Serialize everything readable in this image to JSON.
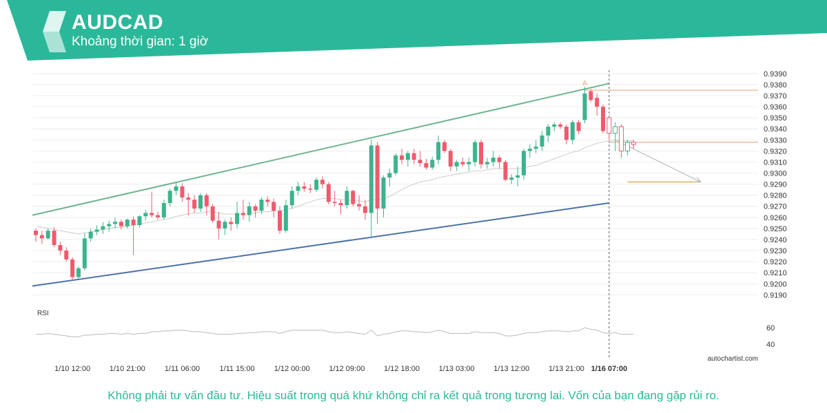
{
  "header": {
    "symbol": "AUDCAD",
    "timeframe": "Khoảng thời gian: 1 giờ"
  },
  "brand_color": "#2bb89a",
  "watermark": "autochartist.com",
  "disclaimer": "Không phải tư vấn đầu tư. Hiệu suất trong quá khứ không chỉ ra kết quả trong tương lai. Vốn của bạn đang gặp rủi ro.",
  "chart_data": {
    "type": "candlestick",
    "symbol": "AUDCAD",
    "interval": "1 giờ",
    "y_ticks": [
      "0.9190",
      "0.9200",
      "0.9210",
      "0.9220",
      "0.9230",
      "0.9240",
      "0.9250",
      "0.9260",
      "0.9270",
      "0.9280",
      "0.9290",
      "0.9300",
      "0.9310",
      "0.9320",
      "0.9330",
      "0.9340",
      "0.9350",
      "0.9360",
      "0.9370",
      "0.9380",
      "0.9390"
    ],
    "ylim": [
      0.9184,
      0.9393
    ],
    "x_ticks": [
      {
        "label": "1/10 12:00",
        "index": 6
      },
      {
        "label": "1/10 21:00",
        "index": 15
      },
      {
        "label": "1/11 06:00",
        "index": 24
      },
      {
        "label": "1/11 15:00",
        "index": 33
      },
      {
        "label": "1/12 00:00",
        "index": 42
      },
      {
        "label": "1/12 09:00",
        "index": 51
      },
      {
        "label": "1/12 18:00",
        "index": 60
      },
      {
        "label": "1/13 03:00",
        "index": 69
      },
      {
        "label": "1/13 12:00",
        "index": 78
      },
      {
        "label": "1/13 21:00",
        "index": 87
      },
      {
        "label": "1/16 07:00",
        "index": 94,
        "bold": true
      }
    ],
    "candles": [
      [
        0.9248,
        0.925,
        0.9238,
        0.9244
      ],
      [
        0.9244,
        0.9248,
        0.9236,
        0.9241
      ],
      [
        0.9241,
        0.925,
        0.924,
        0.9248
      ],
      [
        0.9248,
        0.9251,
        0.9233,
        0.9235
      ],
      [
        0.9235,
        0.9238,
        0.9226,
        0.923
      ],
      [
        0.923,
        0.9233,
        0.922,
        0.9222
      ],
      [
        0.9222,
        0.9224,
        0.9203,
        0.9206
      ],
      [
        0.9206,
        0.9216,
        0.9204,
        0.9214
      ],
      [
        0.9214,
        0.9246,
        0.9212,
        0.9241
      ],
      [
        0.9241,
        0.925,
        0.9238,
        0.9247
      ],
      [
        0.9247,
        0.9253,
        0.9244,
        0.9249
      ],
      [
        0.9249,
        0.9256,
        0.9245,
        0.9252
      ],
      [
        0.9252,
        0.9257,
        0.9247,
        0.9254
      ],
      [
        0.9254,
        0.926,
        0.925,
        0.9256
      ],
      [
        0.9256,
        0.9258,
        0.9249,
        0.9252
      ],
      [
        0.9252,
        0.9259,
        0.925,
        0.9258
      ],
      [
        0.9258,
        0.9261,
        0.9226,
        0.9253
      ],
      [
        0.9253,
        0.9262,
        0.9251,
        0.9261
      ],
      [
        0.9261,
        0.9267,
        0.9257,
        0.9264
      ],
      [
        0.9264,
        0.9283,
        0.926,
        0.9262
      ],
      [
        0.9262,
        0.9265,
        0.9258,
        0.926
      ],
      [
        0.926,
        0.9276,
        0.9258,
        0.9273
      ],
      [
        0.9273,
        0.9286,
        0.927,
        0.9284
      ],
      [
        0.9284,
        0.9292,
        0.928,
        0.9288
      ],
      [
        0.9288,
        0.9291,
        0.9274,
        0.9278
      ],
      [
        0.9278,
        0.9282,
        0.9262,
        0.9276
      ],
      [
        0.9276,
        0.928,
        0.9264,
        0.9268
      ],
      [
        0.9268,
        0.9282,
        0.9265,
        0.928
      ],
      [
        0.928,
        0.9282,
        0.9262,
        0.927
      ],
      [
        0.927,
        0.9272,
        0.9255,
        0.9257
      ],
      [
        0.9257,
        0.9265,
        0.924,
        0.925
      ],
      [
        0.925,
        0.9258,
        0.9244,
        0.9256
      ],
      [
        0.9256,
        0.926,
        0.9248,
        0.9254
      ],
      [
        0.9254,
        0.9274,
        0.925,
        0.9264
      ],
      [
        0.9264,
        0.9276,
        0.9258,
        0.9262
      ],
      [
        0.9262,
        0.9274,
        0.9256,
        0.927
      ],
      [
        0.927,
        0.9272,
        0.926,
        0.9266
      ],
      [
        0.9266,
        0.9278,
        0.9263,
        0.9276
      ],
      [
        0.9276,
        0.9279,
        0.927,
        0.9274
      ],
      [
        0.9274,
        0.9277,
        0.926,
        0.9266
      ],
      [
        0.9266,
        0.927,
        0.9245,
        0.9248
      ],
      [
        0.9248,
        0.9276,
        0.9246,
        0.9271
      ],
      [
        0.9271,
        0.9288,
        0.9268,
        0.9284
      ],
      [
        0.9284,
        0.9292,
        0.928,
        0.9288
      ],
      [
        0.9288,
        0.9292,
        0.9283,
        0.9286
      ],
      [
        0.9286,
        0.929,
        0.9282,
        0.9285
      ],
      [
        0.9285,
        0.9296,
        0.9283,
        0.9294
      ],
      [
        0.9294,
        0.9297,
        0.9286,
        0.929
      ],
      [
        0.929,
        0.9292,
        0.9272,
        0.9274
      ],
      [
        0.9274,
        0.9284,
        0.927,
        0.9273
      ],
      [
        0.9273,
        0.9276,
        0.9263,
        0.9271
      ],
      [
        0.9271,
        0.9288,
        0.9268,
        0.9284
      ],
      [
        0.9284,
        0.9285,
        0.927,
        0.9272
      ],
      [
        0.9272,
        0.928,
        0.9266,
        0.927
      ],
      [
        0.927,
        0.9276,
        0.9258,
        0.9264
      ],
      [
        0.9264,
        0.933,
        0.9242,
        0.9325
      ],
      [
        0.9325,
        0.9328,
        0.9254,
        0.9268
      ],
      [
        0.9268,
        0.9298,
        0.926,
        0.9296
      ],
      [
        0.9296,
        0.9304,
        0.9288,
        0.93
      ],
      [
        0.93,
        0.9318,
        0.9298,
        0.9316
      ],
      [
        0.9316,
        0.9322,
        0.9308,
        0.9312
      ],
      [
        0.9312,
        0.932,
        0.9306,
        0.9318
      ],
      [
        0.9318,
        0.9322,
        0.9308,
        0.9312
      ],
      [
        0.9312,
        0.932,
        0.9306,
        0.9309
      ],
      [
        0.9309,
        0.9313,
        0.9303,
        0.9305
      ],
      [
        0.9305,
        0.9315,
        0.9303,
        0.9312
      ],
      [
        0.9312,
        0.9334,
        0.9308,
        0.9328
      ],
      [
        0.9328,
        0.933,
        0.9318,
        0.932
      ],
      [
        0.932,
        0.9322,
        0.9302,
        0.9306
      ],
      [
        0.9306,
        0.9312,
        0.9302,
        0.931
      ],
      [
        0.931,
        0.9314,
        0.9306,
        0.9308
      ],
      [
        0.9308,
        0.9314,
        0.9302,
        0.931
      ],
      [
        0.931,
        0.933,
        0.9306,
        0.9328
      ],
      [
        0.9328,
        0.933,
        0.9304,
        0.9308
      ],
      [
        0.9308,
        0.9314,
        0.9304,
        0.931
      ],
      [
        0.931,
        0.932,
        0.9306,
        0.9314
      ],
      [
        0.9314,
        0.9316,
        0.9304,
        0.931
      ],
      [
        0.931,
        0.9312,
        0.9293,
        0.9294
      ],
      [
        0.9294,
        0.9299,
        0.929,
        0.9296
      ],
      [
        0.9296,
        0.9306,
        0.9288,
        0.9298
      ],
      [
        0.9298,
        0.9322,
        0.9294,
        0.932
      ],
      [
        0.932,
        0.9326,
        0.9314,
        0.9322
      ],
      [
        0.9322,
        0.933,
        0.9318,
        0.9324
      ],
      [
        0.9324,
        0.9338,
        0.932,
        0.9334
      ],
      [
        0.9334,
        0.9344,
        0.9328,
        0.9342
      ],
      [
        0.9342,
        0.9346,
        0.9338,
        0.9344
      ],
      [
        0.9344,
        0.9346,
        0.934,
        0.9342
      ],
      [
        0.9342,
        0.9344,
        0.9326,
        0.933
      ],
      [
        0.933,
        0.9348,
        0.9326,
        0.9346
      ],
      [
        0.9346,
        0.9348,
        0.9335,
        0.9338
      ],
      [
        0.9348,
        0.9378,
        0.9345,
        0.9372
      ],
      [
        0.9374,
        0.9376,
        0.9364,
        0.9366
      ],
      [
        0.9368,
        0.9372,
        0.9352,
        0.936
      ],
      [
        0.936,
        0.9362,
        0.9336,
        0.9338
      ],
      [
        0.935,
        0.935,
        0.933,
        0.9336
      ],
      [
        0.9336,
        0.9346,
        0.932,
        0.9342
      ],
      [
        0.9342,
        0.9344,
        0.9314,
        0.932
      ],
      [
        0.932,
        0.933,
        0.9316,
        0.9328
      ],
      [
        0.9328,
        0.933,
        0.9322,
        0.9326
      ]
    ],
    "moving_average": [
      0.9252,
      0.9251,
      0.925,
      0.9249,
      0.9248,
      0.9247,
      0.9246,
      0.9245,
      0.9246,
      0.9247,
      0.9248,
      0.9249,
      0.925,
      0.9251,
      0.9251,
      0.9252,
      0.9253,
      0.9254,
      0.9255,
      0.9256,
      0.9257,
      0.9258,
      0.9259,
      0.9261,
      0.9262,
      0.9263,
      0.9264,
      0.9264,
      0.9265,
      0.9265,
      0.9264,
      0.9263,
      0.9263,
      0.9263,
      0.9263,
      0.9264,
      0.9264,
      0.9265,
      0.9265,
      0.9266,
      0.9266,
      0.9267,
      0.9268,
      0.927,
      0.9272,
      0.9274,
      0.9276,
      0.9277,
      0.9277,
      0.9277,
      0.9276,
      0.9276,
      0.9275,
      0.9275,
      0.9274,
      0.9276,
      0.9276,
      0.9277,
      0.9279,
      0.9282,
      0.9285,
      0.9288,
      0.929,
      0.9292,
      0.9293,
      0.9294,
      0.9296,
      0.9297,
      0.9298,
      0.9299,
      0.93,
      0.9301,
      0.9302,
      0.9302,
      0.9303,
      0.9304,
      0.9304,
      0.9304,
      0.9304,
      0.9304,
      0.9305,
      0.9306,
      0.9307,
      0.9309,
      0.9311,
      0.9313,
      0.9315,
      0.9317,
      0.9319,
      0.932,
      0.9323,
      0.9325,
      0.9327,
      0.9328,
      0.9329,
      0.933,
      0.933,
      0.9329,
      0.9329
    ],
    "channel_upper": {
      "from": {
        "index": 0,
        "value": 0.9262
      },
      "to": {
        "index": 94,
        "value": 0.9381
      }
    },
    "channel_lower": {
      "from": {
        "index": 0,
        "value": 0.9198
      },
      "to": {
        "index": 94,
        "value": 0.9273
      }
    },
    "pattern_label": {
      "text": "A",
      "index": 90,
      "value": 0.9378
    },
    "resistance_line": {
      "value": 0.9375,
      "from_index": 90
    },
    "current_level": {
      "value": 0.9328,
      "from_index": 94
    },
    "target_level": {
      "value": 0.9292,
      "from_index": 97,
      "to_index": 109
    },
    "forecast_arrow": {
      "from": {
        "index": 95,
        "value": 0.933
      },
      "to": {
        "index": 109,
        "value": 0.9292
      }
    },
    "vertical_marker_index": 94,
    "rsi": {
      "label": "RSI",
      "ticks": [
        60,
        40
      ],
      "ylim": [
        30,
        75
      ],
      "values": [
        52,
        52,
        53,
        52,
        51,
        50,
        49,
        49,
        51,
        51,
        52,
        52,
        53,
        53,
        52,
        53,
        52,
        53,
        53,
        55,
        55,
        56,
        56,
        57,
        57,
        56,
        55,
        55,
        54,
        53,
        52,
        52,
        52,
        53,
        53,
        54,
        54,
        55,
        55,
        55,
        53,
        55,
        57,
        57,
        57,
        57,
        57,
        57,
        55,
        54,
        54,
        55,
        54,
        53,
        52,
        57,
        50,
        52,
        53,
        55,
        56,
        56,
        55,
        55,
        54,
        55,
        57,
        55,
        53,
        53,
        53,
        53,
        55,
        54,
        54,
        54,
        53,
        50,
        50,
        51,
        53,
        54,
        54,
        55,
        56,
        56,
        56,
        55,
        56,
        56,
        60,
        58,
        57,
        54,
        53,
        54,
        52,
        52,
        52
      ]
    }
  }
}
